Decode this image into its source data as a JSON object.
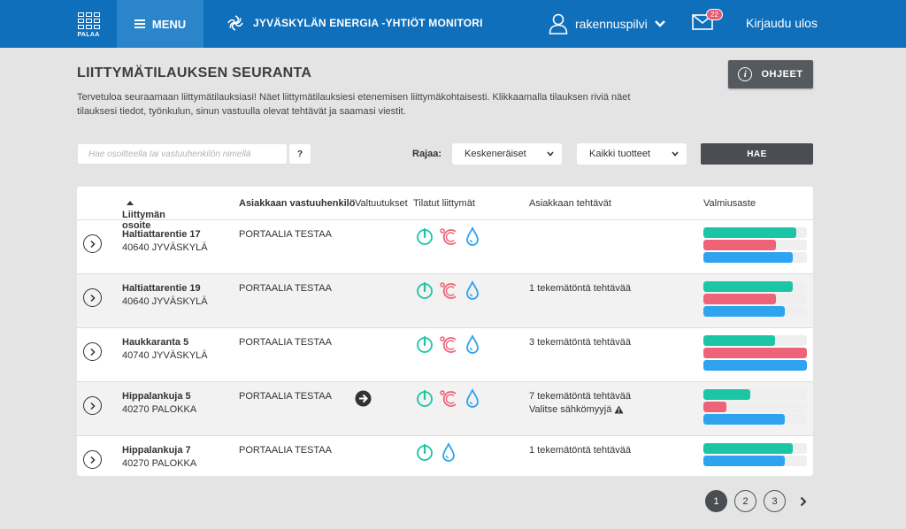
{
  "header": {
    "back_label": "PALAA",
    "menu_label": "MENU",
    "brand": "JYVÄSKYLÄN ENERGIA -YHTIÖT MONITORI",
    "username": "rakennuspilvi",
    "mail_count": "22",
    "logout_label": "Kirjaudu ulos",
    "color": "#0f6fba"
  },
  "page": {
    "title": "LIITTYMÄTILAUKSEN SEURANTA",
    "intro": "Tervetuloa seuraamaan liittymätilauksiasi! Näet liittymätilauksiesi etenemisen liittymäkohtaisesti. Klikkaamalla tilauksen riviä näet tilauksesi tiedot, työnkulun, sinun vastuulla olevat tehtävät ja saamasi viestit.",
    "help_label": "OHJEET"
  },
  "filters": {
    "search_placeholder": "Hae osoitteella tai vastuuhenkilön nimellä",
    "help_q": "?",
    "rajaa_label": "Rajaa:",
    "status_value": "Keskeneräiset",
    "product_value": "Kaikki tuotteet",
    "search_button": "HAE"
  },
  "table": {
    "columns": {
      "address": "Liittymän osoite",
      "contact": "Asiakkaan vastuuhenkilö",
      "valtuutukset": "Valtuutukset",
      "tilatut": "Tilatut liittymät",
      "tasks": "Asiakkaan tehtävät",
      "valmius": "Valmiusaste"
    },
    "rows": [
      {
        "street": "Haltiattarentie 17",
        "city": "40640 JYVÄSKYLÄ",
        "contact": "PORTAALIA TESTAA",
        "task": "",
        "task2": "",
        "icons": [
          "power-icon",
          "heat-icon",
          "water-icon"
        ],
        "progress": [
          {
            "service": "power",
            "value": 90
          },
          {
            "service": "heat",
            "value": 70
          },
          {
            "service": "water",
            "value": 86
          }
        ]
      },
      {
        "street": "Haltiattarentie 19",
        "city": "40640 JYVÄSKYLÄ",
        "contact": "PORTAALIA TESTAA",
        "task": "1 tekemätöntä tehtävää",
        "task2": "",
        "icons": [
          "power-icon",
          "heat-icon",
          "water-icon"
        ],
        "progress": [
          {
            "service": "power",
            "value": 86
          },
          {
            "service": "heat",
            "value": 70
          },
          {
            "service": "water",
            "value": 79
          }
        ]
      },
      {
        "street": "Haukkaranta 5",
        "city": "40740 JYVÄSKYLÄ",
        "contact": "PORTAALIA TESTAA",
        "task": "3 tekemätöntä tehtävää",
        "task2": "",
        "icons": [
          "power-icon",
          "heat-icon",
          "water-icon"
        ],
        "progress": [
          {
            "service": "power",
            "value": 69
          },
          {
            "service": "heat",
            "value": 100
          },
          {
            "service": "water",
            "value": 100
          }
        ]
      },
      {
        "street": "Hippalankuja 5",
        "city": "40270 PALOKKA",
        "contact": "PORTAALIA TESTAA",
        "task": "7 tekemätöntä tehtävää",
        "task2": "Valitse sähkömyyjä",
        "warning": true,
        "authorization": true,
        "icons": [
          "power-icon",
          "heat-icon",
          "water-icon"
        ],
        "progress": [
          {
            "service": "power",
            "value": 45
          },
          {
            "service": "heat",
            "value": 22
          },
          {
            "service": "water",
            "value": 79
          }
        ]
      },
      {
        "street": "Hippalankuja 7",
        "city": "40270 PALOKKA",
        "contact": "PORTAALIA TESTAA",
        "task": "1 tekemätöntä tehtävää",
        "task2": "",
        "icons": [
          "power-icon",
          "water-icon"
        ],
        "progress": [
          {
            "service": "power",
            "value": 86
          },
          {
            "service": "water",
            "value": 79
          }
        ]
      }
    ]
  },
  "service_colors": {
    "power": "#1cc5a4",
    "heat": "#ef6378",
    "water": "#2ea3ef"
  },
  "pagination": {
    "pages": [
      "1",
      "2",
      "3"
    ],
    "active": "1"
  }
}
